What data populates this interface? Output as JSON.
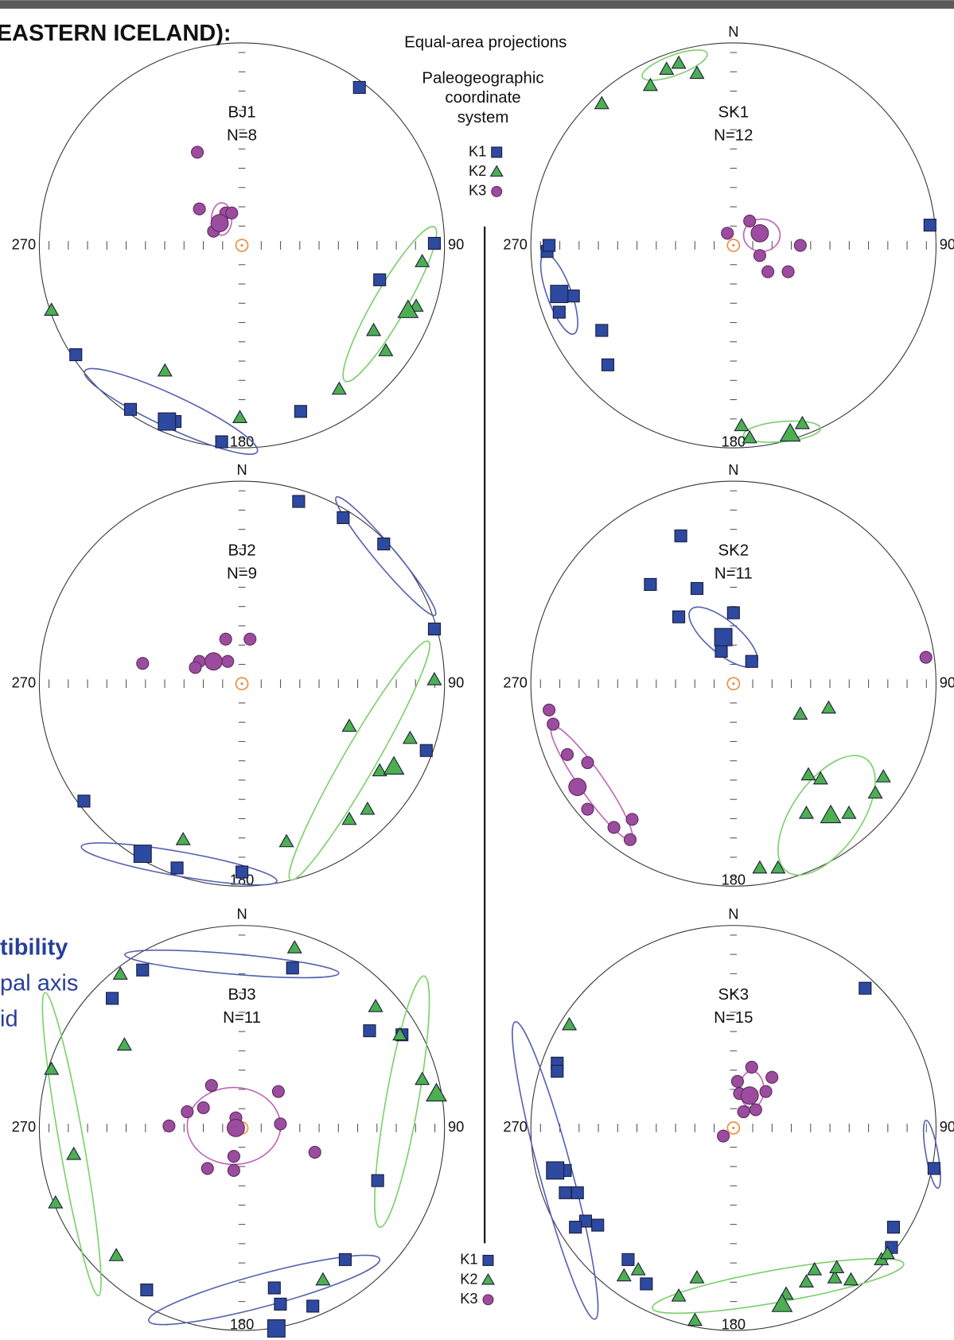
{
  "page": {
    "header": "EASTERN ICELAND):",
    "caption": "Equal-area projections",
    "system": [
      "Paleogeographic",
      "coordinate",
      "system"
    ],
    "side_text": [
      "tibility",
      "pal axis",
      "id"
    ]
  },
  "chart_data": [
    {
      "type": "stereonet",
      "title": "BJ1",
      "subtitle": "N=8",
      "labels": {
        "east": "90",
        "west": "270",
        "south": "180"
      },
      "xlim": [
        -1,
        1
      ],
      "ylim": [
        -1,
        1
      ],
      "series": [
        {
          "name": "K1",
          "marker": "square",
          "color": "#2d4aa0",
          "ellipse_color": "#5561b0",
          "x": [
            0.58,
            0.95,
            0.68,
            -0.82,
            -0.55,
            -0.33,
            -0.1,
            0.29
          ],
          "y": [
            0.78,
            0.01,
            -0.17,
            -0.54,
            -0.81,
            -0.87,
            -0.97,
            -0.82
          ],
          "mean": {
            "x": -0.37,
            "y": -0.87
          },
          "ellipses": [
            {
              "cx": -0.35,
              "cy": -0.82,
              "rx": 0.47,
              "ry": 0.08,
              "angle": 25
            }
          ]
        },
        {
          "name": "K2",
          "marker": "triangle",
          "color": "#4caf50",
          "ellipse_color": "#7ccf6a",
          "x": [
            -0.94,
            -0.38,
            -0.01,
            0.48,
            0.71,
            0.65,
            0.86,
            0.89
          ],
          "y": [
            -0.32,
            -0.62,
            -0.85,
            -0.71,
            -0.52,
            -0.42,
            -0.3,
            -0.08
          ],
          "mean": {
            "x": 0.82,
            "y": -0.32
          },
          "ellipses": [
            {
              "cx": 0.73,
              "cy": -0.29,
              "rx": 0.44,
              "ry": 0.08,
              "angle": -60
            }
          ]
        },
        {
          "name": "K3",
          "marker": "circle",
          "color": "#9c4c9e",
          "ellipse_color": "#c064b8",
          "x": [
            -0.22,
            -0.21,
            -0.08,
            -0.05,
            -0.14
          ],
          "y": [
            0.46,
            0.18,
            0.16,
            0.16,
            0.07
          ],
          "mean": {
            "x": -0.11,
            "y": 0.11
          },
          "ellipses": [
            {
              "cx": -0.1,
              "cy": 0.13,
              "rx": 0.05,
              "ry": 0.08,
              "angle": 0
            }
          ]
        }
      ]
    },
    {
      "type": "stereonet",
      "title": "SK1",
      "subtitle": "N=12",
      "labels": {
        "north": "N",
        "east": "90",
        "west": "270",
        "south": "180"
      },
      "xlim": [
        -1,
        1
      ],
      "ylim": [
        -1,
        1
      ],
      "series": [
        {
          "name": "K1",
          "marker": "square",
          "color": "#2d4aa0",
          "ellipse_color": "#5561b0",
          "x": [
            0.97,
            -0.92,
            -0.91,
            -0.79,
            -0.86,
            -0.65,
            -0.62
          ],
          "y": [
            0.1,
            -0.03,
            0.0,
            -0.25,
            -0.33,
            -0.42,
            -0.59
          ],
          "mean": {
            "x": -0.86,
            "y": -0.24
          },
          "ellipses": [
            {
              "cx": -0.86,
              "cy": -0.24,
              "rx": 0.21,
              "ry": 0.06,
              "angle": 70
            }
          ]
        },
        {
          "name": "K2",
          "marker": "triangle",
          "color": "#4caf50",
          "ellipse_color": "#7ccf6a",
          "x": [
            -0.65,
            -0.41,
            -0.33,
            -0.27,
            -0.18,
            0.04,
            0.08,
            0.34
          ],
          "y": [
            0.7,
            0.79,
            0.87,
            0.9,
            0.85,
            -0.89,
            -0.95,
            -0.88
          ],
          "mean": {
            "x": 0.28,
            "y": -0.93
          },
          "ellipses": [
            {
              "cx": -0.29,
              "cy": 0.89,
              "rx": 0.17,
              "ry": 0.05,
              "angle": -20
            },
            {
              "cx": 0.24,
              "cy": -0.92,
              "rx": 0.19,
              "ry": 0.05,
              "angle": -5
            }
          ]
        },
        {
          "name": "K3",
          "marker": "circle",
          "color": "#9c4c9e",
          "ellipse_color": "#c064b8",
          "x": [
            -0.03,
            0.08,
            0.33,
            0.17,
            0.27,
            0.13
          ],
          "y": [
            0.06,
            0.12,
            0.0,
            -0.13,
            -0.13,
            -0.05
          ],
          "mean": {
            "x": 0.13,
            "y": 0.06
          },
          "ellipses": [
            {
              "cx": 0.14,
              "cy": 0.05,
              "rx": 0.09,
              "ry": 0.08,
              "angle": 0
            }
          ]
        }
      ]
    },
    {
      "type": "stereonet",
      "title": "BJ2",
      "subtitle": "N=9",
      "labels": {
        "north": "N",
        "east": "90",
        "west": "270",
        "south": "180"
      },
      "xlim": [
        -1,
        1
      ],
      "ylim": [
        -1,
        1
      ],
      "series": [
        {
          "name": "K1",
          "marker": "square",
          "color": "#2d4aa0",
          "ellipse_color": "#5561b0",
          "x": [
            0.28,
            0.5,
            0.7,
            0.95,
            0.91,
            -0.78,
            -0.32,
            0.0
          ],
          "y": [
            0.9,
            0.82,
            0.69,
            0.27,
            -0.33,
            -0.58,
            -0.91,
            -0.93
          ],
          "mean": {
            "x": -0.49,
            "y": -0.84
          },
          "ellipses": [
            {
              "cx": -0.31,
              "cy": -0.89,
              "rx": 0.49,
              "ry": 0.06,
              "angle": 10
            },
            {
              "cx": 0.71,
              "cy": 0.63,
              "rx": 0.38,
              "ry": 0.05,
              "angle": 50
            }
          ]
        },
        {
          "name": "K2",
          "marker": "triangle",
          "color": "#4caf50",
          "ellipse_color": "#7ccf6a",
          "x": [
            0.95,
            0.53,
            0.83,
            0.68,
            0.62,
            0.53,
            0.22,
            -0.29
          ],
          "y": [
            0.02,
            -0.21,
            -0.27,
            -0.43,
            -0.62,
            -0.67,
            -0.78,
            -0.77
          ],
          "mean": {
            "x": 0.75,
            "y": -0.41
          },
          "ellipses": [
            {
              "cx": 0.58,
              "cy": -0.38,
              "rx": 0.68,
              "ry": 0.08,
              "angle": -60
            }
          ]
        },
        {
          "name": "K3",
          "marker": "circle",
          "color": "#9c4c9e",
          "ellipse_color": "#c064b8",
          "x": [
            -0.49,
            -0.08,
            0.04,
            -0.21,
            -0.07,
            -0.23
          ],
          "y": [
            0.1,
            0.22,
            0.22,
            0.11,
            0.11,
            0.08
          ],
          "mean": {
            "x": -0.14,
            "y": 0.11
          },
          "ellipses": []
        }
      ]
    },
    {
      "type": "stereonet",
      "title": "SK2",
      "subtitle": "N=11",
      "labels": {
        "north": "N",
        "east": "90",
        "west": "270",
        "south": "180"
      },
      "xlim": [
        -1,
        1
      ],
      "ylim": [
        -1,
        1
      ],
      "series": [
        {
          "name": "K1",
          "marker": "square",
          "color": "#2d4aa0",
          "ellipse_color": "#5561b0",
          "x": [
            -0.26,
            -0.41,
            -0.18,
            -0.27,
            0.0,
            -0.06,
            0.09
          ],
          "y": [
            0.73,
            0.49,
            0.47,
            0.33,
            0.35,
            0.16,
            0.11
          ],
          "mean": {
            "x": -0.05,
            "y": 0.23
          },
          "ellipses": [
            {
              "cx": -0.05,
              "cy": 0.23,
              "rx": 0.21,
              "ry": 0.08,
              "angle": 40
            }
          ]
        },
        {
          "name": "K2",
          "marker": "triangle",
          "color": "#4caf50",
          "ellipse_color": "#7ccf6a",
          "x": [
            0.33,
            0.47,
            0.37,
            0.43,
            0.74,
            0.7,
            0.36,
            0.57,
            0.13,
            0.22
          ],
          "y": [
            -0.15,
            -0.12,
            -0.45,
            -0.47,
            -0.46,
            -0.54,
            -0.64,
            -0.64,
            -0.91,
            -0.91
          ],
          "mean": {
            "x": 0.48,
            "y": -0.65
          },
          "ellipses": [
            {
              "cx": 0.46,
              "cy": -0.65,
              "rx": 0.34,
              "ry": 0.17,
              "angle": -55
            }
          ]
        },
        {
          "name": "K3",
          "marker": "circle",
          "color": "#9c4c9e",
          "ellipse_color": "#c064b8",
          "x": [
            0.95,
            -0.91,
            -0.89,
            -0.82,
            -0.72,
            -0.72,
            -0.59,
            -0.5,
            -0.51
          ],
          "y": [
            0.13,
            -0.13,
            -0.2,
            -0.35,
            -0.39,
            -0.62,
            -0.71,
            -0.67,
            -0.77
          ],
          "mean": {
            "x": -0.77,
            "y": -0.51
          },
          "ellipses": [
            {
              "cx": -0.7,
              "cy": -0.49,
              "rx": 0.34,
              "ry": 0.06,
              "angle": 55
            }
          ]
        }
      ]
    },
    {
      "type": "stereonet",
      "title": "BJ3",
      "subtitle": "N=11",
      "labels": {
        "north": "N",
        "east": "90",
        "west": "270",
        "south": "180"
      },
      "xlim": [
        -1,
        1
      ],
      "ylim": [
        -1,
        1
      ],
      "series": [
        {
          "name": "K1",
          "marker": "square",
          "color": "#2d4aa0",
          "ellipse_color": "#5561b0",
          "x": [
            -0.49,
            -0.64,
            0.25,
            0.63,
            0.79,
            0.67,
            0.51,
            0.16,
            0.19,
            0.35,
            -0.47
          ],
          "y": [
            0.78,
            0.64,
            0.79,
            0.48,
            0.46,
            -0.26,
            -0.65,
            -0.79,
            -0.87,
            -0.88,
            -0.8
          ],
          "mean": {
            "x": 0.17,
            "y": -0.99
          },
          "ellipses": [
            {
              "cx": -0.05,
              "cy": 0.81,
              "rx": 0.53,
              "ry": 0.05,
              "angle": 5
            },
            {
              "cx": 0.11,
              "cy": -0.8,
              "rx": 0.59,
              "ry": 0.08,
              "angle": -15
            }
          ]
        },
        {
          "name": "K2",
          "marker": "triangle",
          "color": "#4caf50",
          "ellipse_color": "#7ccf6a",
          "x": [
            0.26,
            -0.6,
            -0.58,
            -0.94,
            0.66,
            0.78,
            0.89,
            -0.83,
            -0.92,
            -0.62,
            0.4
          ],
          "y": [
            0.89,
            0.76,
            0.41,
            0.29,
            0.6,
            0.46,
            0.24,
            -0.13,
            -0.37,
            -0.63,
            -0.75
          ],
          "mean": {
            "x": 0.96,
            "y": 0.17
          },
          "ellipses": [
            {
              "cx": -0.84,
              "cy": -0.08,
              "rx": 0.76,
              "ry": 0.06,
              "angle": 80
            },
            {
              "cx": 0.79,
              "cy": 0.13,
              "rx": 0.63,
              "ry": 0.08,
              "angle": -80
            }
          ]
        },
        {
          "name": "K3",
          "marker": "circle",
          "color": "#9c4c9e",
          "ellipse_color": "#c064b8",
          "x": [
            -0.15,
            -0.19,
            -0.27,
            -0.36,
            -0.03,
            0.18,
            0.19,
            -0.04,
            -0.17,
            -0.04,
            0.36
          ],
          "y": [
            0.21,
            0.1,
            0.08,
            0.01,
            0.05,
            0.18,
            0.02,
            -0.14,
            -0.2,
            -0.21,
            -0.12
          ],
          "mean": {
            "x": -0.03,
            "y": 0.0
          },
          "ellipses": [
            {
              "cx": -0.04,
              "cy": 0.01,
              "rx": 0.23,
              "ry": 0.19,
              "angle": 0
            }
          ]
        }
      ]
    },
    {
      "type": "stereonet",
      "title": "SK3",
      "subtitle": "N=15",
      "labels": {
        "north": "N",
        "east": "90",
        "west": "270",
        "south": "180"
      },
      "xlim": [
        -1,
        1
      ],
      "ylim": [
        -1,
        1
      ],
      "series": [
        {
          "name": "K1",
          "marker": "square",
          "color": "#2d4aa0",
          "ellipse_color": "#5561b0",
          "x": [
            0.65,
            -0.87,
            -0.87,
            -0.83,
            -0.83,
            -0.77,
            -0.73,
            -0.67,
            -0.78,
            -0.52,
            -0.43,
            0.79,
            0.78,
            0.99
          ],
          "y": [
            0.69,
            0.32,
            0.28,
            -0.21,
            -0.32,
            -0.32,
            -0.46,
            -0.48,
            -0.49,
            -0.65,
            -0.77,
            -0.49,
            -0.59,
            -0.2
          ],
          "mean": {
            "x": -0.88,
            "y": -0.21
          },
          "ellipses": [
            {
              "cx": -0.88,
              "cy": -0.21,
              "rx": 0.76,
              "ry": 0.08,
              "angle": 75
            },
            {
              "cx": 0.98,
              "cy": -0.13,
              "rx": 0.17,
              "ry": 0.03,
              "angle": 80
            }
          ]
        },
        {
          "name": "K2",
          "marker": "triangle",
          "color": "#4caf50",
          "ellipse_color": "#7ccf6a",
          "x": [
            -0.81,
            -0.54,
            -0.47,
            -0.18,
            -0.27,
            0.26,
            0.36,
            0.4,
            0.5,
            0.51,
            0.58,
            0.73,
            0.76,
            -0.19
          ],
          "y": [
            0.51,
            -0.73,
            -0.7,
            -0.74,
            -0.83,
            -0.82,
            -0.76,
            -0.7,
            -0.74,
            -0.69,
            -0.75,
            -0.65,
            -0.62,
            -0.95
          ],
          "mean": {
            "x": 0.24,
            "y": -0.87
          },
          "ellipses": [
            {
              "cx": 0.22,
              "cy": -0.78,
              "rx": 0.63,
              "ry": 0.08,
              "angle": -10
            }
          ]
        },
        {
          "name": "K3",
          "marker": "circle",
          "color": "#9c4c9e",
          "ellipse_color": "#c064b8",
          "x": [
            0.09,
            0.02,
            0.19,
            0.16,
            0.03,
            0.11,
            0.05,
            -0.05
          ],
          "y": [
            0.3,
            0.23,
            0.25,
            0.18,
            0.17,
            0.09,
            0.08,
            -0.04
          ],
          "mean": {
            "x": 0.08,
            "y": 0.16
          },
          "ellipses": [
            {
              "cx": 0.09,
              "cy": 0.19,
              "rx": 0.06,
              "ry": 0.09,
              "angle": 0
            }
          ]
        }
      ]
    }
  ]
}
